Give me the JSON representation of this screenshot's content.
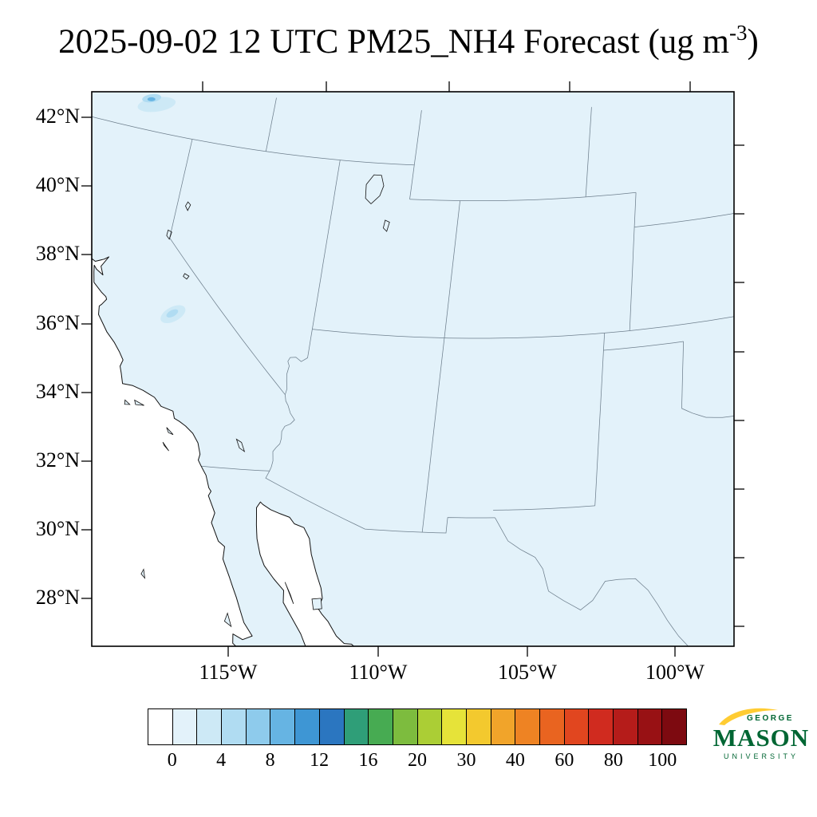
{
  "title": {
    "prefix": "2025-09-02 12 UTC PM25_NH4 Forecast (ug m",
    "exponent": "-3",
    "suffix": ")"
  },
  "axes": {
    "lat_ticks": [
      "42°N",
      "40°N",
      "38°N",
      "36°N",
      "34°N",
      "32°N",
      "30°N",
      "28°N"
    ],
    "lon_ticks": [
      "115°W",
      "110°W",
      "105°W",
      "100°W"
    ]
  },
  "colorbar": {
    "tick_labels": [
      "0",
      "4",
      "8",
      "12",
      "16",
      "20",
      "30",
      "40",
      "60",
      "80",
      "100"
    ],
    "colors": [
      "#ffffff",
      "#e3f2fa",
      "#cde9f6",
      "#b0dcf2",
      "#8ecbec",
      "#66b4e3",
      "#3e96d4",
      "#2b76c0",
      "#2f9e78",
      "#47ab52",
      "#7dbc3e",
      "#abce35",
      "#e6e339",
      "#f3c92e",
      "#f1a42a",
      "#ee8323",
      "#e96420",
      "#e1461f",
      "#d02b1f",
      "#b51c1a",
      "#981114",
      "#7d0a10"
    ]
  },
  "logo": {
    "george": "GEORGE",
    "mason": "MASON",
    "university": "UNIVERSITY",
    "green": "#006633",
    "gold": "#ffcc33"
  },
  "chart_data": {
    "type": "heatmap",
    "title": "2025-09-02 12 UTC PM25_NH4 Forecast (ug m-3)",
    "variable": "PM25_NH4",
    "units": "ug m-3",
    "forecast_time": "2025-09-02 12 UTC",
    "projection": "Lambert-conformal-style map of the southwestern United States and northern Mexico",
    "map_extent": {
      "lon_west_approx": -124,
      "lon_east_approx": -98,
      "lat_south_approx": 26.7,
      "lat_north_approx": 42.8
    },
    "lat_tick_values_deg_n": [
      42,
      40,
      38,
      36,
      34,
      32,
      30,
      28
    ],
    "lon_tick_values_deg_w": [
      115,
      110,
      105,
      100
    ],
    "level_boundaries": [
      0,
      2,
      4,
      6,
      8,
      10,
      12,
      14,
      16,
      18,
      20,
      25,
      30,
      35,
      40,
      50,
      60,
      70,
      80,
      90,
      100
    ],
    "labeled_levels": [
      0,
      4,
      8,
      12,
      16,
      20,
      30,
      40,
      60,
      80,
      100
    ],
    "palette": [
      "#ffffff",
      "#e3f2fa",
      "#cde9f6",
      "#b0dcf2",
      "#8ecbec",
      "#66b4e3",
      "#3e96d4",
      "#2b76c0",
      "#2f9e78",
      "#47ab52",
      "#7dbc3e",
      "#abce35",
      "#e6e339",
      "#f3c92e",
      "#f1a42a",
      "#ee8323",
      "#e96420",
      "#e1461f",
      "#d02b1f",
      "#b51c1a",
      "#981114",
      "#7d0a10"
    ],
    "field_summary": "Nearly uniform lowest bin (0-2 ug m-3, lightest blue) over the whole land domain; ocean areas white; small enhanced patches of about 2-8 ug m-3 at the top-left edge (southern Oregon / northern California border region) and over the central San Joaquin Valley, California.",
    "features": [
      {
        "name": "background-land",
        "value_range": [
          0,
          2
        ]
      },
      {
        "name": "patch-top-left-oregon-border",
        "approx_lon": -121.8,
        "approx_lat": 42.9,
        "value_range": [
          2,
          8
        ]
      },
      {
        "name": "patch-san-joaquin-valley",
        "approx_lon": -119.25,
        "approx_lat": 36.8,
        "value_range": [
          2,
          6
        ]
      }
    ],
    "legend_position": "bottom horizontal colorbar",
    "grid": "off"
  }
}
